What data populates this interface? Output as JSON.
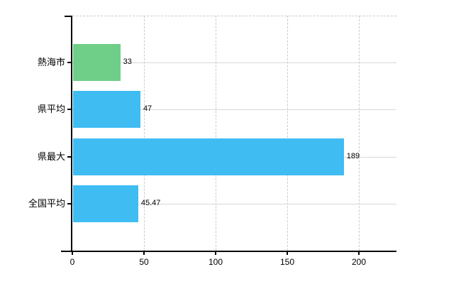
{
  "chart_data": {
    "type": "bar",
    "orientation": "horizontal",
    "title": "",
    "xlabel": "",
    "ylabel": "",
    "legend": "none",
    "categories": [
      "熱海市",
      "県平均",
      "県最大",
      "全国平均"
    ],
    "values": [
      33,
      47,
      189,
      45.47
    ],
    "value_labels": [
      "33",
      "47",
      "189",
      "45.47"
    ],
    "bar_colors": [
      "#6fce87",
      "#3fbcf2",
      "#3fbcf2",
      "#3fbcf2"
    ],
    "x_ticks": [
      0,
      50,
      100,
      150,
      200
    ],
    "x_tick_labels": [
      "0",
      "50",
      "100",
      "150",
      "200"
    ],
    "xlim": [
      0,
      226
    ],
    "grid": {
      "horizontal_style": "solid",
      "vertical_style": "dashed",
      "top_border_style": "dashed"
    },
    "colors": {
      "bar_green": "#6fce87",
      "bar_blue": "#3fbcf2",
      "grid_horizontal": "#d6d9d6",
      "grid_vertical": "#cfc8cf",
      "axis": "#000000",
      "text": "#000000",
      "background": "#ffffff"
    }
  }
}
